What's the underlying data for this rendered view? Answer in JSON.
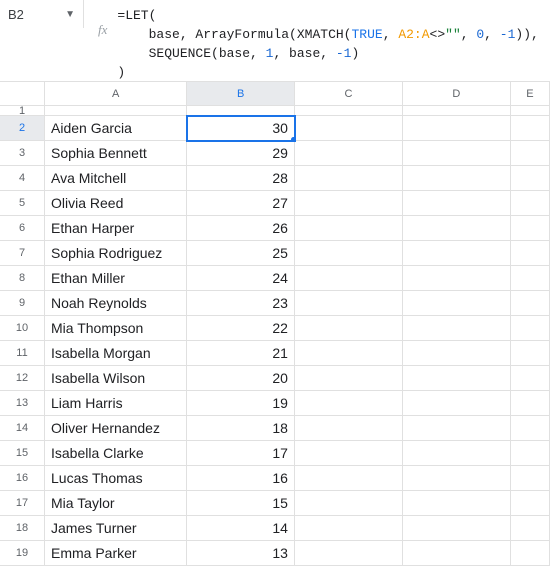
{
  "nameBox": {
    "ref": "B2"
  },
  "fx": {
    "label": "fx"
  },
  "formula": {
    "line1_prefix": "=",
    "line1_func": "LET",
    "line1_open": "(",
    "line2_indent": "    ",
    "line2_a": "base, ",
    "line2_af": "ArrayFormula",
    "line2_b": "(",
    "line2_xm": "XMATCH",
    "line2_c": "(",
    "line2_bool": "TRUE",
    "line2_d": ", ",
    "line2_ref": "A2:A",
    "line2_e": "<>",
    "line2_str": "\"\"",
    "line2_f": ", ",
    "line2_n1": "0",
    "line2_g": ", ",
    "line2_n2": "-1",
    "line2_h": ")),",
    "line3_indent": "    ",
    "line3_seq": "SEQUENCE",
    "line3_a": "(base, ",
    "line3_n1": "1",
    "line3_b": ", base, ",
    "line3_n2": "-1",
    "line3_c": ")",
    "line4": ")"
  },
  "columns": {
    "A": "A",
    "B": "B",
    "C": "C",
    "D": "D",
    "E": "E"
  },
  "rows": [
    {
      "n": "1",
      "name": "",
      "val": ""
    },
    {
      "n": "2",
      "name": "Aiden Garcia",
      "val": "30"
    },
    {
      "n": "3",
      "name": "Sophia Bennett",
      "val": "29"
    },
    {
      "n": "4",
      "name": "Ava Mitchell",
      "val": "28"
    },
    {
      "n": "5",
      "name": "Olivia Reed",
      "val": "27"
    },
    {
      "n": "6",
      "name": "Ethan Harper",
      "val": "26"
    },
    {
      "n": "7",
      "name": "Sophia Rodriguez",
      "val": "25"
    },
    {
      "n": "8",
      "name": "Ethan Miller",
      "val": "24"
    },
    {
      "n": "9",
      "name": "Noah Reynolds",
      "val": "23"
    },
    {
      "n": "10",
      "name": "Mia Thompson",
      "val": "22"
    },
    {
      "n": "11",
      "name": "Isabella Morgan",
      "val": "21"
    },
    {
      "n": "12",
      "name": "Isabella Wilson",
      "val": "20"
    },
    {
      "n": "13",
      "name": "Liam Harris",
      "val": "19"
    },
    {
      "n": "14",
      "name": "Oliver Hernandez",
      "val": "18"
    },
    {
      "n": "15",
      "name": "Isabella Clarke",
      "val": "17"
    },
    {
      "n": "16",
      "name": "Lucas Thomas",
      "val": "16"
    },
    {
      "n": "17",
      "name": "Mia Taylor",
      "val": "15"
    },
    {
      "n": "18",
      "name": "James Turner",
      "val": "14"
    },
    {
      "n": "19",
      "name": "Emma Parker",
      "val": "13"
    }
  ],
  "activeCell": "B2",
  "colors": {
    "selection": "#1a73e8",
    "grid": "#e0e0e0",
    "func": "#202124",
    "bool": "#1a73e8",
    "ref": "#f29900",
    "str": "#188038",
    "num": "#1967d2"
  }
}
